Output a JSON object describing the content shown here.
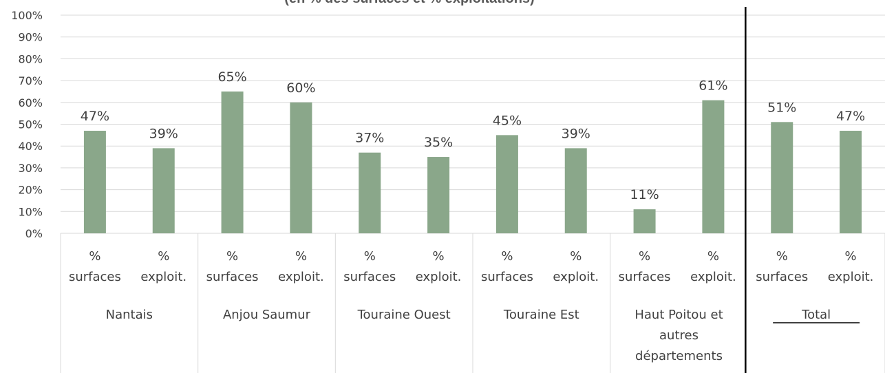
{
  "chart_data": {
    "type": "bar",
    "title": "(en % des surfaces et % exploitations)",
    "ylim": [
      0,
      100
    ],
    "y_ticks": [
      "0%",
      "10%",
      "20%",
      "30%",
      "40%",
      "50%",
      "60%",
      "70%",
      "80%",
      "90%",
      "100%"
    ],
    "grid": true,
    "groups": [
      {
        "name": "Nantais",
        "name_lines": [
          "Nantais"
        ],
        "bars": [
          {
            "label_lines": [
              "%",
              "surfaces"
            ],
            "value": 47,
            "data_label": "47%"
          },
          {
            "label_lines": [
              "%",
              "exploit."
            ],
            "value": 39,
            "data_label": "39%"
          }
        ]
      },
      {
        "name": "Anjou Saumur",
        "name_lines": [
          "Anjou Saumur"
        ],
        "bars": [
          {
            "label_lines": [
              "%",
              "surfaces"
            ],
            "value": 65,
            "data_label": "65%"
          },
          {
            "label_lines": [
              "%",
              "exploit."
            ],
            "value": 60,
            "data_label": "60%"
          }
        ]
      },
      {
        "name": "Touraine Ouest",
        "name_lines": [
          "Touraine Ouest"
        ],
        "bars": [
          {
            "label_lines": [
              "%",
              "surfaces"
            ],
            "value": 37,
            "data_label": "37%"
          },
          {
            "label_lines": [
              "%",
              "exploit."
            ],
            "value": 35,
            "data_label": "35%"
          }
        ]
      },
      {
        "name": "Touraine Est",
        "name_lines": [
          "Touraine Est"
        ],
        "bars": [
          {
            "label_lines": [
              "%",
              "surfaces"
            ],
            "value": 45,
            "data_label": "45%"
          },
          {
            "label_lines": [
              "%",
              "exploit."
            ],
            "value": 39,
            "data_label": "39%"
          }
        ]
      },
      {
        "name": "Haut Poitou et autres départements",
        "name_lines": [
          "Haut Poitou et",
          "autres",
          "départements"
        ],
        "bars": [
          {
            "label_lines": [
              "%",
              "surfaces"
            ],
            "value": 11,
            "data_label": "11%"
          },
          {
            "label_lines": [
              "%",
              "exploit."
            ],
            "value": 61,
            "data_label": "61%"
          }
        ]
      },
      {
        "name": "Total",
        "name_lines": [
          "Total"
        ],
        "bars": [
          {
            "label_lines": [
              "%",
              "surfaces"
            ],
            "value": 51,
            "data_label": "51%"
          },
          {
            "label_lines": [
              "%",
              "exploit."
            ],
            "value": 47,
            "data_label": "47%"
          }
        ]
      }
    ],
    "colors": {
      "bar": "#8aa78a",
      "grid": "#d9d9d9",
      "text": "#404040",
      "total_divider": "#000000"
    }
  }
}
